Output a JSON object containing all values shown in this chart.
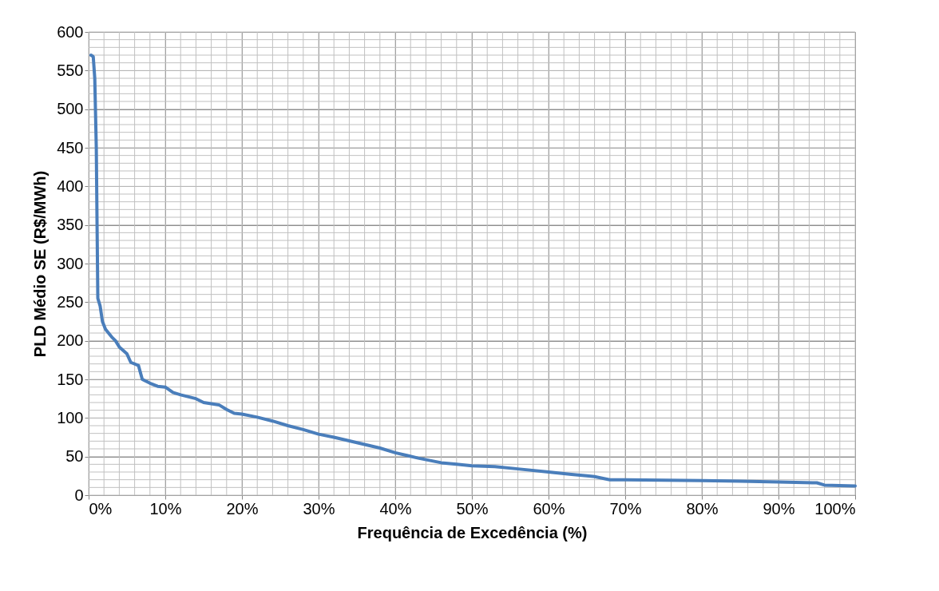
{
  "chart_data": {
    "type": "line",
    "xlabel": "Frequência de Excedência (%)",
    "ylabel": "PLD Médio SE (R$/MWh)",
    "x": [
      0.3,
      0.6,
      0.8,
      1.0,
      1.1,
      1.2,
      1.5,
      1.8,
      2.2,
      3,
      3.5,
      4,
      5,
      5.5,
      6.5,
      7,
      8,
      9,
      10,
      11,
      12,
      14,
      15,
      17,
      18,
      19,
      20,
      22,
      24,
      26,
      28,
      30,
      32,
      35,
      38,
      40,
      43,
      46,
      48,
      50,
      53,
      56,
      60,
      63,
      65,
      66,
      68,
      70,
      80,
      85,
      90,
      95,
      96,
      100
    ],
    "series": [
      {
        "color": "#4a7ebb",
        "values": [
          570,
          568,
          540,
          450,
          350,
          255,
          245,
          225,
          215,
          205,
          200,
          192,
          183,
          172,
          168,
          150,
          145,
          141,
          140,
          133,
          130,
          125,
          120,
          117,
          111,
          106,
          105,
          101,
          96,
          90,
          85,
          79,
          75,
          68,
          61,
          55,
          48,
          42,
          40,
          38,
          37,
          34,
          30,
          27,
          25,
          24,
          20,
          20,
          19,
          18,
          17,
          16,
          13,
          12
        ]
      }
    ],
    "xlim": [
      0,
      100
    ],
    "xticks": [
      {
        "value": 0,
        "label": "0%"
      },
      {
        "value": 10,
        "label": "10%"
      },
      {
        "value": 20,
        "label": "20%"
      },
      {
        "value": 30,
        "label": "30%"
      },
      {
        "value": 40,
        "label": "40%"
      },
      {
        "value": 50,
        "label": "50%"
      },
      {
        "value": 60,
        "label": "60%"
      },
      {
        "value": 70,
        "label": "70%"
      },
      {
        "value": 80,
        "label": "80%"
      },
      {
        "value": 90,
        "label": "90%"
      },
      {
        "value": 100,
        "label": "100%"
      }
    ],
    "ylim": [
      0,
      600
    ],
    "yticks": [
      0,
      50,
      100,
      150,
      200,
      250,
      300,
      350,
      400,
      450,
      500,
      550,
      600
    ],
    "grid": true,
    "marker": "none",
    "line_style": "solid"
  }
}
